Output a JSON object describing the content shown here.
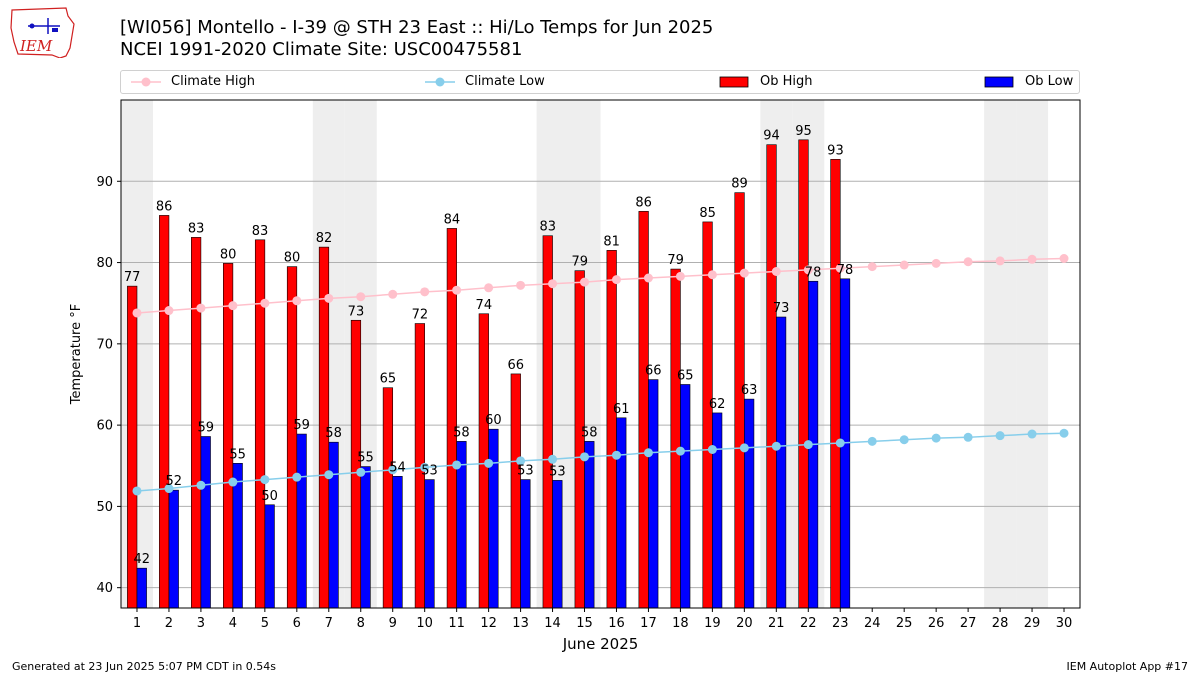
{
  "header": {
    "title_line1": "[WI056] Montello - I-39 @ STH 23 East :: Hi/Lo Temps for Jun 2025",
    "title_line2": "NCEI 1991-2020 Climate Site: USC00475581"
  },
  "logo": {
    "text": "IEM"
  },
  "footer": {
    "generated": "Generated at 23 Jun 2025 5:07 PM CDT in 0.54s",
    "app": "IEM Autoplot App #17"
  },
  "chart_data": {
    "type": "bar",
    "xlabel": "June 2025",
    "ylabel": "Temperature °F",
    "ylim": [
      37.5,
      100
    ],
    "yticks": [
      40,
      50,
      60,
      70,
      80,
      90
    ],
    "days": [
      1,
      2,
      3,
      4,
      5,
      6,
      7,
      8,
      9,
      10,
      11,
      12,
      13,
      14,
      15,
      16,
      17,
      18,
      19,
      20,
      21,
      22,
      23,
      24,
      25,
      26,
      27,
      28,
      29,
      30
    ],
    "weekend_days": [
      1,
      7,
      8,
      14,
      15,
      21,
      22,
      28,
      29
    ],
    "grid": "horizontal",
    "legend_position": "top",
    "series": [
      {
        "name": "Climate High",
        "kind": "line",
        "color": "#ffc0cb",
        "values": [
          73.8,
          74.1,
          74.4,
          74.7,
          75.0,
          75.3,
          75.6,
          75.8,
          76.1,
          76.4,
          76.6,
          76.9,
          77.2,
          77.4,
          77.6,
          77.9,
          78.1,
          78.3,
          78.5,
          78.7,
          78.9,
          79.1,
          79.3,
          79.5,
          79.7,
          79.9,
          80.1,
          80.2,
          80.4,
          80.5
        ]
      },
      {
        "name": "Climate Low",
        "kind": "line",
        "color": "#87ceeb",
        "values": [
          51.9,
          52.2,
          52.6,
          53.0,
          53.3,
          53.6,
          53.9,
          54.2,
          54.5,
          54.8,
          55.1,
          55.3,
          55.6,
          55.8,
          56.1,
          56.3,
          56.6,
          56.8,
          57.0,
          57.2,
          57.4,
          57.6,
          57.8,
          58.0,
          58.2,
          58.4,
          58.5,
          58.7,
          58.9,
          59.0
        ]
      },
      {
        "name": "Ob High",
        "kind": "bar",
        "color": "#ff0000",
        "values": [
          77,
          86,
          83,
          80,
          83,
          80,
          82,
          73,
          65,
          72,
          84,
          74,
          66,
          83,
          79,
          81,
          86,
          79,
          85,
          89,
          94,
          95,
          93
        ],
        "display_values": [
          77.1,
          85.8,
          83.1,
          79.9,
          82.8,
          79.5,
          81.9,
          72.9,
          64.6,
          72.5,
          84.2,
          73.7,
          66.3,
          83.3,
          79.0,
          81.5,
          86.3,
          79.2,
          85.0,
          88.6,
          94.5,
          95.1,
          92.7
        ]
      },
      {
        "name": "Ob Low",
        "kind": "bar",
        "color": "#0000ff",
        "values": [
          42,
          52,
          59,
          55,
          50,
          59,
          58,
          55,
          54,
          53,
          58,
          60,
          53,
          53,
          58,
          61,
          66,
          65,
          62,
          63,
          73,
          78,
          78
        ],
        "display_values": [
          42.4,
          52.0,
          58.6,
          55.3,
          50.2,
          58.9,
          57.9,
          54.9,
          53.7,
          53.3,
          58.0,
          59.5,
          53.3,
          53.2,
          58.0,
          60.9,
          65.6,
          65.0,
          61.5,
          63.2,
          73.3,
          77.7,
          78.0
        ]
      }
    ]
  }
}
